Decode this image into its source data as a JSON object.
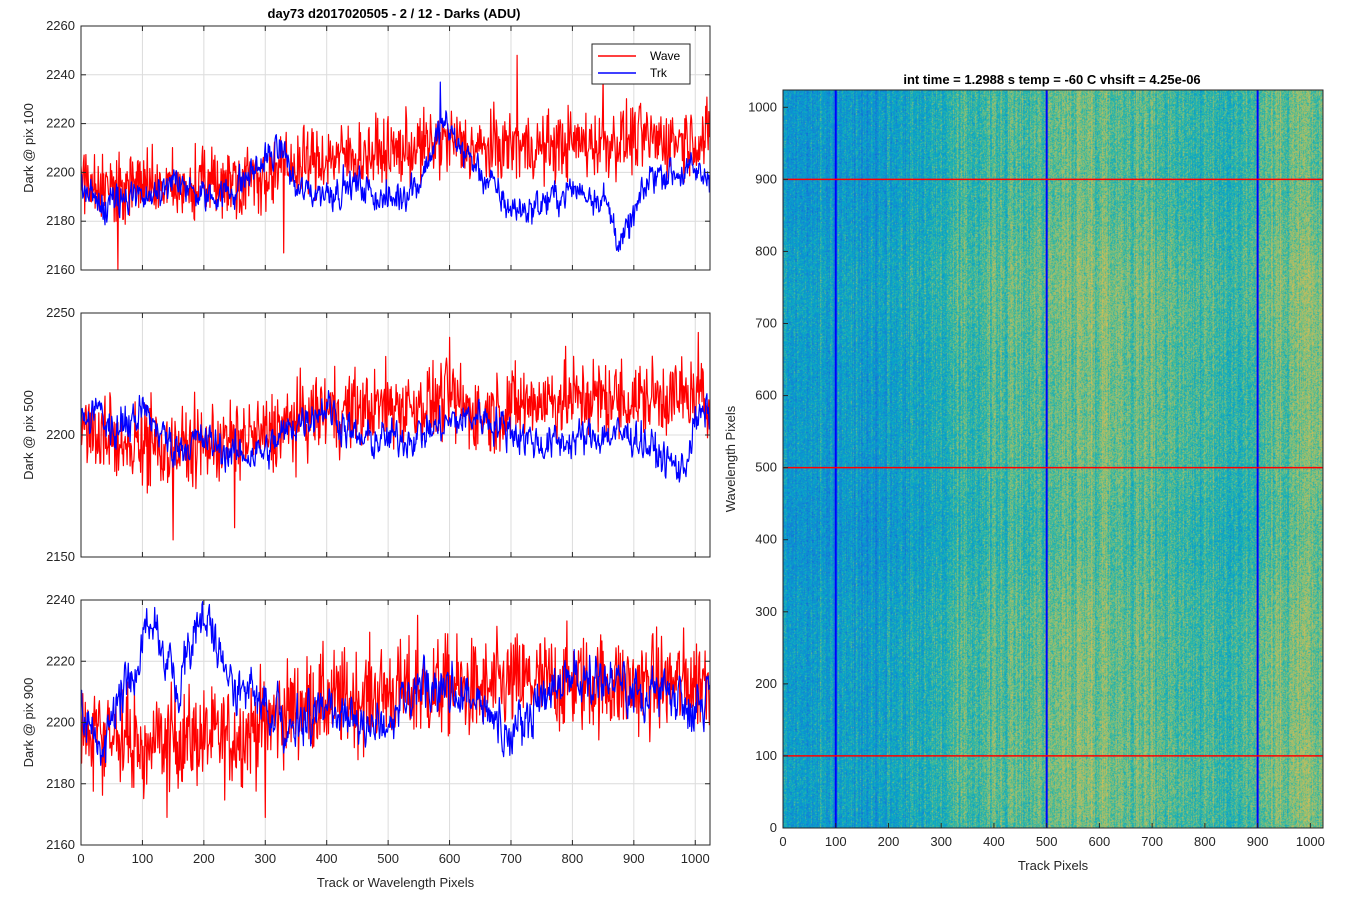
{
  "figure_title": "day73 d2017020505 - 2 / 12 - Darks (ADU)",
  "colors": {
    "wave": "#ff0000",
    "trk": "#0000ff",
    "grid": "#dcdcdc",
    "axes": "#262626"
  },
  "legend": {
    "placement": "top-right",
    "items": [
      "Wave",
      "Trk"
    ]
  },
  "chart_data": [
    {
      "type": "line",
      "ylabel": "Dark @ pix 100",
      "xlabel": "",
      "xlim": [
        0,
        1024
      ],
      "ylim": [
        2160,
        2260
      ],
      "xticks": [
        0,
        100,
        200,
        300,
        400,
        500,
        600,
        700,
        800,
        900,
        1000
      ],
      "yticks": [
        2160,
        2180,
        2200,
        2220,
        2240,
        2260
      ],
      "grid": true,
      "show_legend": true,
      "noise_amp": 7,
      "series": [
        {
          "name": "Wave",
          "color": "#ff0000",
          "x": [
            0,
            50,
            100,
            150,
            200,
            250,
            300,
            350,
            400,
            450,
            500,
            550,
            600,
            650,
            700,
            750,
            800,
            850,
            900,
            950,
            1000,
            1023
          ],
          "y": [
            2198,
            2193,
            2196,
            2192,
            2195,
            2197,
            2199,
            2203,
            2206,
            2207,
            2208,
            2210,
            2213,
            2209,
            2211,
            2210,
            2212,
            2212,
            2214,
            2213,
            2214,
            2213
          ],
          "spikes": [
            [
              60,
              2160
            ],
            [
              330,
              2167
            ],
            [
              710,
              2248
            ],
            [
              850,
              2240
            ]
          ]
        },
        {
          "name": "Trk",
          "color": "#0000ff",
          "x": [
            0,
            30,
            60,
            100,
            150,
            200,
            250,
            300,
            330,
            350,
            400,
            450,
            500,
            550,
            590,
            650,
            700,
            730,
            800,
            850,
            880,
            930,
            1000,
            1023
          ],
          "y": [
            2195,
            2185,
            2188,
            2190,
            2196,
            2190,
            2193,
            2205,
            2210,
            2192,
            2192,
            2195,
            2188,
            2196,
            2220,
            2200,
            2185,
            2185,
            2193,
            2190,
            2170,
            2200,
            2200,
            2198
          ],
          "spikes": [
            [
              585,
              2237
            ]
          ]
        }
      ]
    },
    {
      "type": "line",
      "ylabel": "Dark @ pix 500",
      "xlabel": "",
      "xlim": [
        0,
        1024
      ],
      "ylim": [
        2150,
        2250
      ],
      "xticks": [
        0,
        100,
        200,
        300,
        400,
        500,
        600,
        700,
        800,
        900,
        1000
      ],
      "yticks": [
        2150,
        2200,
        2250
      ],
      "grid": true,
      "show_legend": false,
      "noise_amp": 8,
      "series": [
        {
          "name": "Wave",
          "color": "#ff0000",
          "x": [
            0,
            50,
            100,
            150,
            200,
            250,
            300,
            350,
            400,
            450,
            500,
            550,
            600,
            650,
            700,
            750,
            800,
            850,
            900,
            950,
            1000,
            1023
          ],
          "y": [
            2203,
            2198,
            2197,
            2194,
            2196,
            2198,
            2200,
            2205,
            2210,
            2210,
            2212,
            2212,
            2215,
            2208,
            2212,
            2214,
            2215,
            2215,
            2214,
            2216,
            2215,
            2212
          ],
          "spikes": [
            [
              150,
              2157
            ],
            [
              250,
              2162
            ],
            [
              600,
              2240
            ],
            [
              1005,
              2242
            ]
          ]
        },
        {
          "name": "Trk",
          "color": "#0000ff",
          "x": [
            0,
            30,
            60,
            100,
            150,
            200,
            250,
            300,
            350,
            400,
            450,
            500,
            550,
            600,
            650,
            700,
            750,
            800,
            850,
            900,
            950,
            980,
            1000,
            1023
          ],
          "y": [
            2205,
            2210,
            2200,
            2210,
            2195,
            2198,
            2192,
            2193,
            2205,
            2212,
            2198,
            2198,
            2200,
            2205,
            2208,
            2202,
            2196,
            2198,
            2200,
            2200,
            2190,
            2185,
            2205,
            2210
          ],
          "spikes": []
        }
      ]
    },
    {
      "type": "line",
      "ylabel": "Dark @ pix 900",
      "xlabel": "Track or Wavelength Pixels",
      "xlim": [
        0,
        1024
      ],
      "ylim": [
        2160,
        2240
      ],
      "xticks": [
        0,
        100,
        200,
        300,
        400,
        500,
        600,
        700,
        800,
        900,
        1000
      ],
      "yticks": [
        2160,
        2180,
        2200,
        2220,
        2240
      ],
      "grid": true,
      "show_legend": false,
      "noise_amp": 8,
      "series": [
        {
          "name": "Wave",
          "color": "#ff0000",
          "x": [
            0,
            50,
            100,
            150,
            200,
            250,
            300,
            350,
            400,
            450,
            500,
            550,
            600,
            650,
            700,
            750,
            800,
            850,
            900,
            950,
            1000,
            1023
          ],
          "y": [
            2200,
            2195,
            2192,
            2195,
            2195,
            2195,
            2200,
            2205,
            2207,
            2208,
            2210,
            2210,
            2212,
            2210,
            2213,
            2213,
            2213,
            2213,
            2212,
            2213,
            2213,
            2215
          ],
          "spikes": [
            [
              140,
              2169
            ],
            [
              300,
              2169
            ],
            [
              548,
              2235
            ]
          ]
        },
        {
          "name": "Trk",
          "color": "#0000ff",
          "x": [
            0,
            30,
            60,
            80,
            110,
            130,
            160,
            190,
            210,
            230,
            260,
            300,
            350,
            400,
            450,
            500,
            550,
            600,
            650,
            700,
            750,
            800,
            850,
            900,
            950,
            1000,
            1023
          ],
          "y": [
            2205,
            2190,
            2205,
            2215,
            2232,
            2225,
            2210,
            2235,
            2232,
            2220,
            2210,
            2205,
            2200,
            2205,
            2200,
            2198,
            2210,
            2212,
            2205,
            2195,
            2210,
            2215,
            2215,
            2208,
            2212,
            2205,
            2210
          ],
          "spikes": []
        }
      ]
    },
    {
      "type": "heatmap",
      "title": "int time = 1.2988 s    temp = -60 C    vhsift = 4.25e-06",
      "xlabel": "Track Pixels",
      "ylabel": "Wavelength Pixels",
      "xlim": [
        0,
        1024
      ],
      "ylim": [
        0,
        1024
      ],
      "xticks": [
        0,
        100,
        200,
        300,
        400,
        500,
        600,
        700,
        800,
        900,
        1000
      ],
      "yticks": [
        0,
        100,
        200,
        300,
        400,
        500,
        600,
        700,
        800,
        900,
        1000
      ],
      "colormap": "parula",
      "column_profile": {
        "x": [
          0,
          30,
          60,
          100,
          150,
          200,
          250,
          300,
          350,
          400,
          450,
          500,
          550,
          600,
          650,
          700,
          750,
          800,
          850,
          900,
          950,
          1000,
          1023
        ],
        "level": [
          0.4,
          0.4,
          0.38,
          0.4,
          0.4,
          0.42,
          0.45,
          0.48,
          0.52,
          0.55,
          0.55,
          0.57,
          0.6,
          0.62,
          0.58,
          0.58,
          0.55,
          0.52,
          0.5,
          0.55,
          0.6,
          0.62,
          0.58
        ]
      },
      "vertical_lines": {
        "x": [
          100,
          500,
          900
        ],
        "color": "#0000ff"
      },
      "horizontal_lines": {
        "y": [
          100,
          500,
          900
        ],
        "color": "#ff0000"
      }
    }
  ]
}
